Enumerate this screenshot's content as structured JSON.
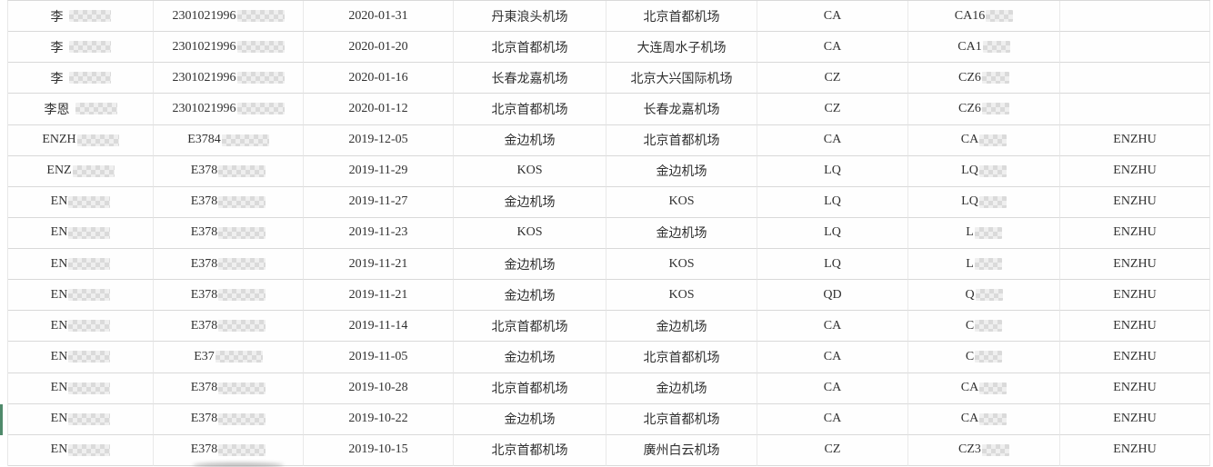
{
  "view": {
    "description": "Flight-records data table with partially pixel-blurred personal data",
    "colors": {
      "grid_horizontal": "#d9d9d9",
      "grid_vertical": "#e9e9e9",
      "text": "#303030",
      "selection_marker_green": "#4f8a6b",
      "background": "#ffffff"
    }
  },
  "table": {
    "columns": [
      "name",
      "id",
      "date",
      "from",
      "to",
      "airline",
      "flight",
      "passenger"
    ],
    "rows": [
      {
        "name": {
          "text": "李",
          "masked": true
        },
        "id": {
          "text": "2301021996",
          "masked": true
        },
        "date": "2020-01-31",
        "from": "丹東浪头机场",
        "to": "北京首都机场",
        "airline": "CA",
        "flight": {
          "text": "CA16",
          "masked": true
        },
        "passenger": ""
      },
      {
        "name": {
          "text": "李",
          "masked": true
        },
        "id": {
          "text": "2301021996",
          "masked": true
        },
        "date": "2020-01-20",
        "from": "北京首都机场",
        "to": "大连周水子机场",
        "airline": "CA",
        "flight": {
          "text": "CA1",
          "masked": true
        },
        "passenger": ""
      },
      {
        "name": {
          "text": "李",
          "masked": true
        },
        "id": {
          "text": "2301021996",
          "masked": true
        },
        "date": "2020-01-16",
        "from": "长春龙嘉机场",
        "to": "北京大兴国际机场",
        "airline": "CZ",
        "flight": {
          "text": "CZ6",
          "masked": true
        },
        "passenger": ""
      },
      {
        "name": {
          "text": "李恩",
          "masked": true
        },
        "id": {
          "text": "2301021996",
          "masked": true
        },
        "date": "2020-01-12",
        "from": "北京首都机场",
        "to": "长春龙嘉机场",
        "airline": "CZ",
        "flight": {
          "text": "CZ6",
          "masked": true
        },
        "passenger": ""
      },
      {
        "name": {
          "text": "ENZH",
          "masked": true
        },
        "id": {
          "text": "E3784",
          "masked": true
        },
        "date": "2019-12-05",
        "from": "金边机场",
        "to": "北京首都机场",
        "airline": "CA",
        "flight": {
          "text": "CA",
          "masked": true
        },
        "passenger": "ENZHU"
      },
      {
        "name": {
          "text": "ENZ",
          "masked": true
        },
        "id": {
          "text": "E378",
          "masked": true
        },
        "date": "2019-11-29",
        "from": "KOS",
        "to": "金边机场",
        "airline": "LQ",
        "flight": {
          "text": "LQ",
          "masked": true
        },
        "passenger": "ENZHU"
      },
      {
        "name": {
          "text": "EN",
          "masked": true
        },
        "id": {
          "text": "E378",
          "masked": true
        },
        "date": "2019-11-27",
        "from": "金边机场",
        "to": "KOS",
        "airline": "LQ",
        "flight": {
          "text": "LQ",
          "masked": true
        },
        "passenger": "ENZHU"
      },
      {
        "name": {
          "text": "EN",
          "masked": true
        },
        "id": {
          "text": "E378",
          "masked": true
        },
        "date": "2019-11-23",
        "from": "KOS",
        "to": "金边机场",
        "airline": "LQ",
        "flight": {
          "text": "L",
          "masked": true
        },
        "passenger": "ENZHU"
      },
      {
        "name": {
          "text": "EN",
          "masked": true
        },
        "id": {
          "text": "E378",
          "masked": true
        },
        "date": "2019-11-21",
        "from": "金边机场",
        "to": "KOS",
        "airline": "LQ",
        "flight": {
          "text": "L",
          "masked": true
        },
        "passenger": "ENZHU"
      },
      {
        "name": {
          "text": "EN",
          "masked": true
        },
        "id": {
          "text": "E378",
          "masked": true
        },
        "date": "2019-11-21",
        "from": "金边机场",
        "to": "KOS",
        "airline": "QD",
        "flight": {
          "text": "Q",
          "masked": true
        },
        "passenger": "ENZHU"
      },
      {
        "name": {
          "text": "EN",
          "masked": true
        },
        "id": {
          "text": "E378",
          "masked": true
        },
        "date": "2019-11-14",
        "from": "北京首都机场",
        "to": "金边机场",
        "airline": "CA",
        "flight": {
          "text": "C",
          "masked": true
        },
        "passenger": "ENZHU"
      },
      {
        "name": {
          "text": "EN",
          "masked": true
        },
        "id": {
          "text": "E37",
          "masked": true
        },
        "date": "2019-11-05",
        "from": "金边机场",
        "to": "北京首都机场",
        "airline": "CA",
        "flight": {
          "text": "C",
          "masked": true
        },
        "passenger": "ENZHU"
      },
      {
        "name": {
          "text": "EN",
          "masked": true
        },
        "id": {
          "text": "E378",
          "masked": true
        },
        "date": "2019-10-28",
        "from": "北京首都机场",
        "to": "金边机场",
        "airline": "CA",
        "flight": {
          "text": "CA",
          "masked": true
        },
        "passenger": "ENZHU"
      },
      {
        "name": {
          "text": "EN",
          "masked": true
        },
        "id": {
          "text": "E378",
          "masked": true
        },
        "date": "2019-10-22",
        "from": "金边机场",
        "to": "北京首都机场",
        "airline": "CA",
        "flight": {
          "text": "CA",
          "masked": true
        },
        "passenger": "ENZHU"
      },
      {
        "name": {
          "text": "EN",
          "masked": true
        },
        "id": {
          "text": "E378",
          "masked": true
        },
        "date": "2019-10-15",
        "from": "北京首都机场",
        "to": "廣州白云机场",
        "airline": "CZ",
        "flight": {
          "text": "CZ3",
          "masked": true
        },
        "passenger": "ENZHU"
      }
    ]
  },
  "selection": {
    "selected_row_index": 13
  }
}
